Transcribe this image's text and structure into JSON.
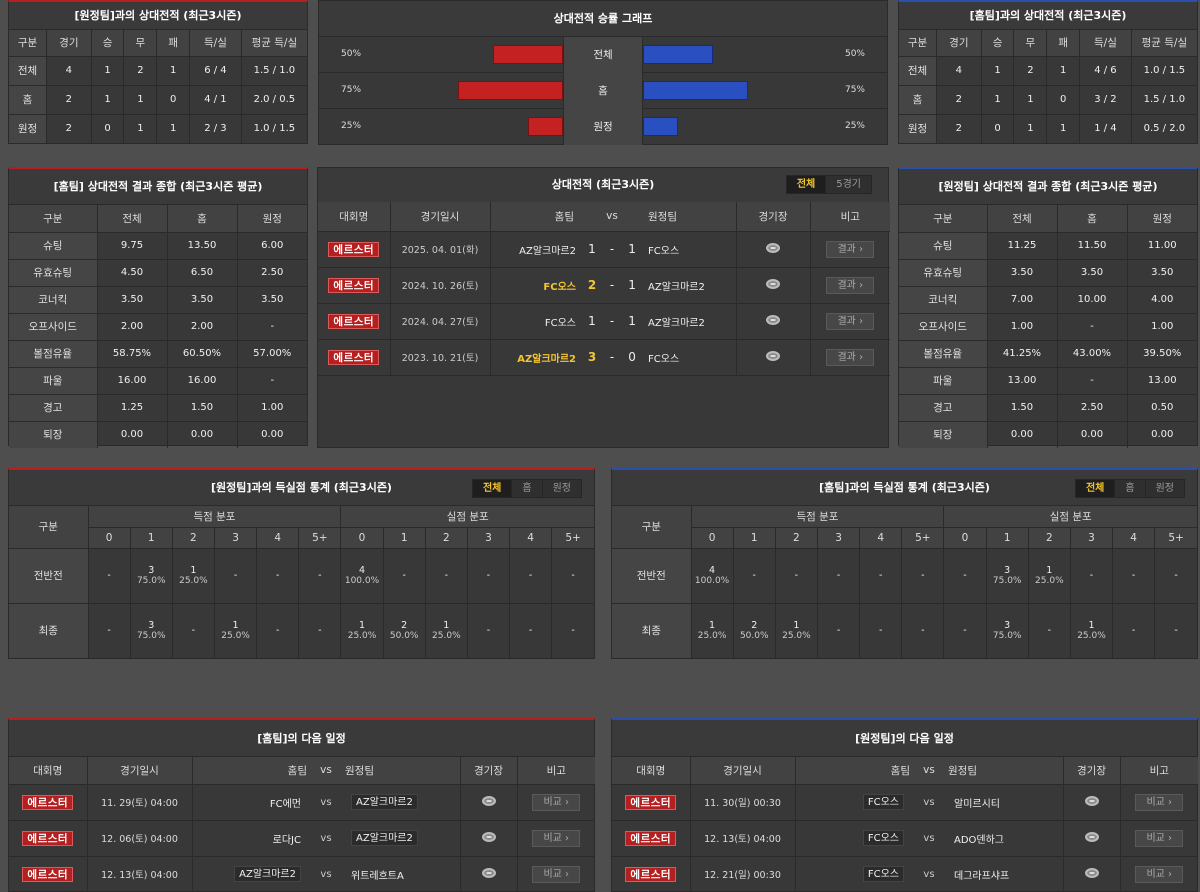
{
  "away_h2h": {
    "title": "[원정팀]과의 상대전적 (최근3시즌)",
    "headers": [
      "구분",
      "경기",
      "승",
      "무",
      "패",
      "득/실",
      "평균 득/실"
    ],
    "rows": [
      [
        "전체",
        "4",
        "1",
        "2",
        "1",
        "6 / 4",
        "1.5 / 1.0"
      ],
      [
        "홈",
        "2",
        "1",
        "1",
        "0",
        "4 / 1",
        "2.0 / 0.5"
      ],
      [
        "원정",
        "2",
        "0",
        "1",
        "1",
        "2 / 3",
        "1.0 / 1.5"
      ]
    ]
  },
  "home_h2h": {
    "title": "[홈팀]과의 상대전적 (최근3시즌)",
    "headers": [
      "구분",
      "경기",
      "승",
      "무",
      "패",
      "득/실",
      "평균 득/실"
    ],
    "rows": [
      [
        "전체",
        "4",
        "1",
        "2",
        "1",
        "4 / 6",
        "1.0 / 1.5"
      ],
      [
        "홈",
        "2",
        "1",
        "1",
        "0",
        "3 / 2",
        "1.5 / 1.0"
      ],
      [
        "원정",
        "2",
        "0",
        "1",
        "1",
        "1 / 4",
        "0.5 / 2.0"
      ]
    ]
  },
  "winrate": {
    "title": "상대전적 승률 그래프",
    "rows": [
      {
        "label": "전체",
        "left_pct": "50%",
        "right_pct": "50%",
        "left": 0.5,
        "right": 0.5
      },
      {
        "label": "홈",
        "left_pct": "75%",
        "right_pct": "75%",
        "left": 0.75,
        "right": 0.75
      },
      {
        "label": "원정",
        "left_pct": "25%",
        "right_pct": "25%",
        "left": 0.25,
        "right": 0.25
      }
    ],
    "left_color": "#c42222",
    "right_color": "#2a4fc0"
  },
  "home_summary": {
    "title": "[홈팀] 상대전적 결과 종합 (최근3시즌 평균)",
    "headers": [
      "구분",
      "전체",
      "홈",
      "원정"
    ],
    "rows": [
      [
        "슈팅",
        "9.75",
        "13.50",
        "6.00"
      ],
      [
        "유효슈팅",
        "4.50",
        "6.50",
        "2.50"
      ],
      [
        "코너킥",
        "3.50",
        "3.50",
        "3.50"
      ],
      [
        "오프사이드",
        "2.00",
        "2.00",
        "-"
      ],
      [
        "볼점유율",
        "58.75%",
        "60.50%",
        "57.00%"
      ],
      [
        "파울",
        "16.00",
        "16.00",
        "-"
      ],
      [
        "경고",
        "1.25",
        "1.50",
        "1.00"
      ],
      [
        "퇴장",
        "0.00",
        "0.00",
        "0.00"
      ]
    ]
  },
  "away_summary": {
    "title": "[원정팀] 상대전적 결과 종합 (최근3시즌 평균)",
    "headers": [
      "구분",
      "전체",
      "홈",
      "원정"
    ],
    "rows": [
      [
        "슈팅",
        "11.25",
        "11.50",
        "11.00"
      ],
      [
        "유효슈팅",
        "3.50",
        "3.50",
        "3.50"
      ],
      [
        "코너킥",
        "7.00",
        "10.00",
        "4.00"
      ],
      [
        "오프사이드",
        "1.00",
        "-",
        "1.00"
      ],
      [
        "볼점유율",
        "41.25%",
        "43.00%",
        "39.50%"
      ],
      [
        "파울",
        "13.00",
        "-",
        "13.00"
      ],
      [
        "경고",
        "1.50",
        "2.50",
        "0.50"
      ],
      [
        "퇴장",
        "0.00",
        "0.00",
        "0.00"
      ]
    ]
  },
  "recent": {
    "title": "상대전적 (최근3시즌)",
    "tabs": [
      "전체",
      "5경기"
    ],
    "headers": {
      "league": "대회명",
      "date": "경기일시",
      "home": "홈팀",
      "vs": "vs",
      "away": "원정팀",
      "venue": "경기장",
      "note": "비고"
    },
    "result_label": "결과",
    "matches": [
      {
        "league": "에르스터",
        "date": "2025. 04. 01(화)",
        "home": "AZ알크마르2",
        "hs": "1",
        "as": "1",
        "away": "FC오스",
        "home_win": false
      },
      {
        "league": "에르스터",
        "date": "2024. 10. 26(토)",
        "home": "FC오스",
        "hs": "2",
        "as": "1",
        "away": "AZ알크마르2",
        "home_win": true
      },
      {
        "league": "에르스터",
        "date": "2024. 04. 27(토)",
        "home": "FC오스",
        "hs": "1",
        "as": "1",
        "away": "AZ알크마르2",
        "home_win": false
      },
      {
        "league": "에르스터",
        "date": "2023. 10. 21(토)",
        "home": "AZ알크마르2",
        "hs": "3",
        "as": "0",
        "away": "FC오스",
        "home_win": true
      }
    ]
  },
  "away_goals": {
    "title": "[원정팀]과의 득실점 통계 (최근3시즌)",
    "tabs": [
      "전체",
      "홈",
      "원정"
    ],
    "h_label": "구분",
    "scored_label": "득점 분포",
    "conceded_label": "실점 분포",
    "cols": [
      "0",
      "1",
      "2",
      "3",
      "4",
      "5+"
    ],
    "rows": [
      {
        "label": "전반전",
        "cells": [
          [
            "-",
            ""
          ],
          [
            "3",
            "75.0%"
          ],
          [
            "1",
            "25.0%"
          ],
          [
            "-",
            ""
          ],
          [
            "-",
            ""
          ],
          [
            "-",
            ""
          ],
          [
            "4",
            "100.0%"
          ],
          [
            "-",
            ""
          ],
          [
            "-",
            ""
          ],
          [
            "-",
            ""
          ],
          [
            "-",
            ""
          ],
          [
            "-",
            ""
          ]
        ]
      },
      {
        "label": "최종",
        "cells": [
          [
            "-",
            ""
          ],
          [
            "3",
            "75.0%"
          ],
          [
            "-",
            ""
          ],
          [
            "1",
            "25.0%"
          ],
          [
            "-",
            ""
          ],
          [
            "-",
            ""
          ],
          [
            "1",
            "25.0%"
          ],
          [
            "2",
            "50.0%"
          ],
          [
            "1",
            "25.0%"
          ],
          [
            "-",
            ""
          ],
          [
            "-",
            ""
          ],
          [
            "-",
            ""
          ]
        ]
      }
    ]
  },
  "home_goals": {
    "title": "[홈팀]과의 득실점 통계 (최근3시즌)",
    "tabs": [
      "전체",
      "홈",
      "원정"
    ],
    "h_label": "구분",
    "scored_label": "득점 분포",
    "conceded_label": "실점 분포",
    "cols": [
      "0",
      "1",
      "2",
      "3",
      "4",
      "5+"
    ],
    "rows": [
      {
        "label": "전반전",
        "cells": [
          [
            "4",
            "100.0%"
          ],
          [
            "-",
            ""
          ],
          [
            "-",
            ""
          ],
          [
            "-",
            ""
          ],
          [
            "-",
            ""
          ],
          [
            "-",
            ""
          ],
          [
            "-",
            ""
          ],
          [
            "3",
            "75.0%"
          ],
          [
            "1",
            "25.0%"
          ],
          [
            "-",
            ""
          ],
          [
            "-",
            ""
          ],
          [
            "-",
            ""
          ]
        ]
      },
      {
        "label": "최종",
        "cells": [
          [
            "1",
            "25.0%"
          ],
          [
            "2",
            "50.0%"
          ],
          [
            "1",
            "25.0%"
          ],
          [
            "-",
            ""
          ],
          [
            "-",
            ""
          ],
          [
            "-",
            ""
          ],
          [
            "-",
            ""
          ],
          [
            "3",
            "75.0%"
          ],
          [
            "-",
            ""
          ],
          [
            "1",
            "25.0%"
          ],
          [
            "-",
            ""
          ],
          [
            "-",
            ""
          ]
        ]
      }
    ]
  },
  "home_next": {
    "title": "[홈팀]의 다음 일정",
    "headers": {
      "league": "대회명",
      "date": "경기일시",
      "home": "홈팀",
      "vs": "vs",
      "away": "원정팀",
      "venue": "경기장",
      "note": "비고"
    },
    "btn": "비교",
    "matches": [
      {
        "league": "에르스터",
        "date": "11. 29(토) 04:00",
        "home": "FC에먼",
        "away": "AZ알크마르2",
        "box": "away"
      },
      {
        "league": "에르스터",
        "date": "12. 06(토) 04:00",
        "home": "로다JC",
        "away": "AZ알크마르2",
        "box": "away"
      },
      {
        "league": "에르스터",
        "date": "12. 13(토) 04:00",
        "home": "AZ알크마르2",
        "away": "위트레흐트A",
        "box": "home"
      }
    ]
  },
  "away_next": {
    "title": "[원정팀]의 다음 일정",
    "headers": {
      "league": "대회명",
      "date": "경기일시",
      "home": "홈팀",
      "vs": "vs",
      "away": "원정팀",
      "venue": "경기장",
      "note": "비고"
    },
    "btn": "비교",
    "matches": [
      {
        "league": "에르스터",
        "date": "11. 30(일) 00:30",
        "home": "FC오스",
        "away": "알미르시티",
        "box": "home"
      },
      {
        "league": "에르스터",
        "date": "12. 13(토) 04:00",
        "home": "FC오스",
        "away": "ADO덴하그",
        "box": "home"
      },
      {
        "league": "에르스터",
        "date": "12. 21(일) 00:30",
        "home": "FC오스",
        "away": "데그라프샤프",
        "box": "home"
      }
    ]
  }
}
